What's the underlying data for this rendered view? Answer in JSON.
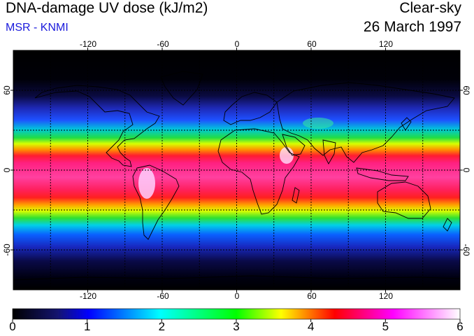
{
  "header": {
    "title": "DNA-damage UV dose (kJ/m2)",
    "source": "MSR - KNMI",
    "condition": "Clear-sky",
    "date": "26 March 1997"
  },
  "map": {
    "lon_ticks": [
      "-120",
      "-60",
      "0",
      "60",
      "120"
    ],
    "lon_tick_values": [
      -120,
      -60,
      0,
      60,
      120
    ],
    "lat_ticks": [
      "60",
      "0",
      "-60"
    ],
    "lat_tick_values": [
      60,
      0,
      -60
    ],
    "lon_range": [
      -180,
      180
    ],
    "lat_range": [
      -90,
      90
    ],
    "grid_lon": [
      -150,
      -120,
      -90,
      -60,
      -30,
      0,
      30,
      60,
      90,
      120,
      150
    ],
    "grid_lat": [
      -60,
      -30,
      0,
      30,
      60
    ],
    "grid": true
  },
  "colorbar": {
    "labels": [
      "0",
      "1",
      "2",
      "3",
      "4",
      "5",
      "6"
    ],
    "min": 0,
    "max": 6,
    "colors": [
      "#000000",
      "#1a1a78",
      "#0000ff",
      "#00ffff",
      "#00ff00",
      "#ffff00",
      "#ff0000",
      "#ff00ff",
      "#ffffff"
    ]
  }
}
